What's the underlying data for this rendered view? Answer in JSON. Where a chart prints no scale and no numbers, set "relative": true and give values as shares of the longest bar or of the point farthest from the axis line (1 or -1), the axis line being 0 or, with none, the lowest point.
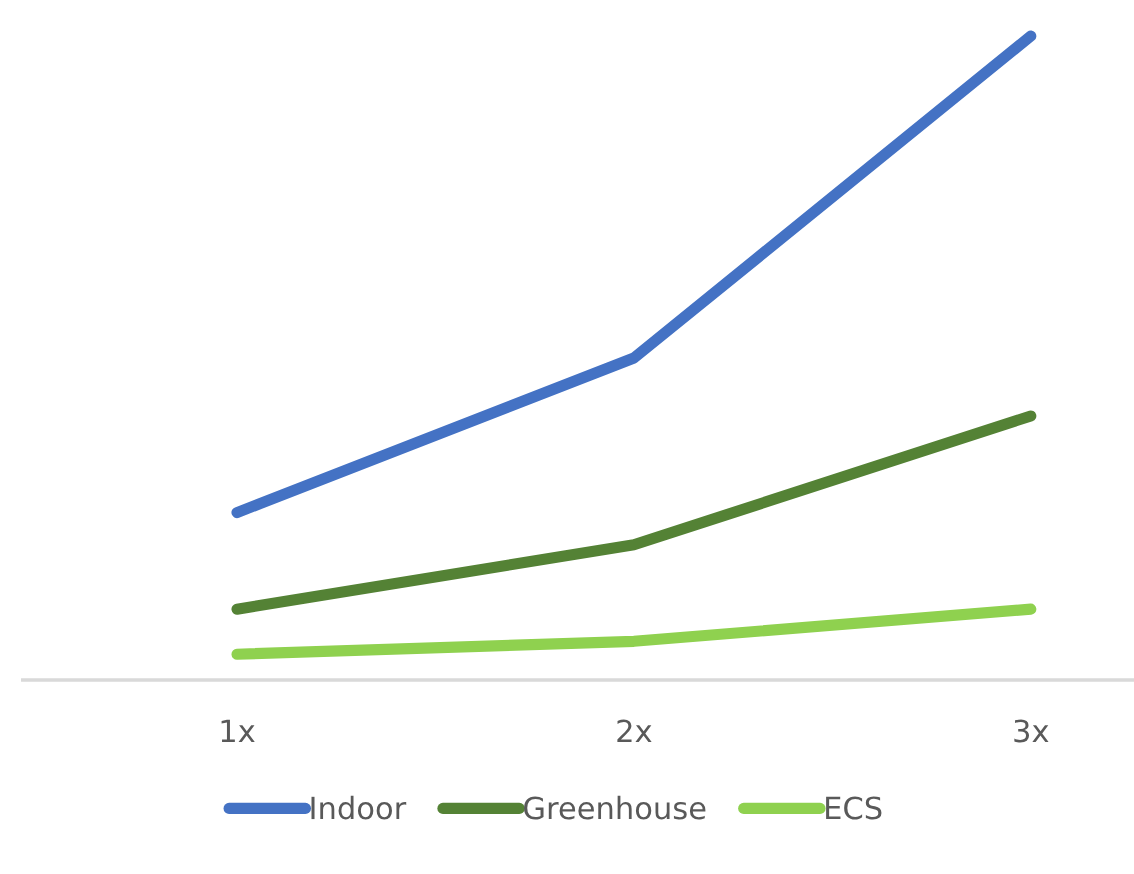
{
  "chart_data": {
    "type": "line",
    "relative": true,
    "categories": [
      "1x",
      "2x",
      "3x"
    ],
    "series": [
      {
        "name": "Indoor",
        "color": "#4472c4",
        "values": [
          0.26,
          0.5,
          1
        ]
      },
      {
        "name": "Greenhouse",
        "color": "#548235",
        "values": [
          0.11,
          0.21,
          0.41
        ]
      },
      {
        "name": "ECS",
        "color": "#8fd14f",
        "values": [
          0.04,
          0.06,
          0.11
        ]
      }
    ],
    "legend": "bottom",
    "grid": false,
    "marker": "none",
    "line_style": "solid"
  }
}
